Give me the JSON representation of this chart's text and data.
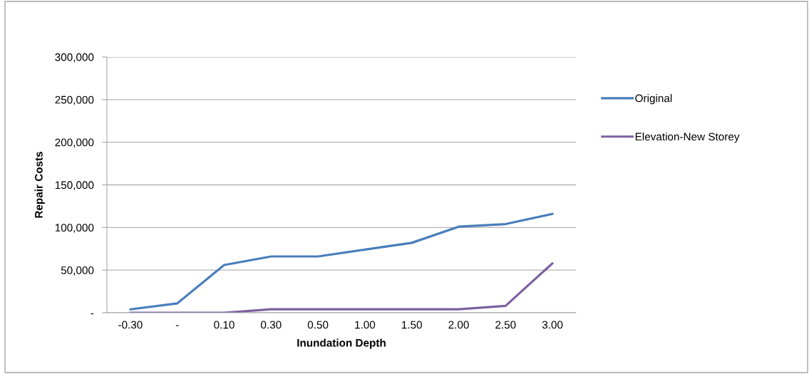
{
  "chart_data": {
    "type": "line",
    "xlabel": "Inundation Depth",
    "ylabel": "Repair Costs",
    "categories": [
      "-0.30",
      "-",
      "0.10",
      "0.30",
      "0.50",
      "1.00",
      "1.50",
      "2.00",
      "2.50",
      "3.00"
    ],
    "series": [
      {
        "name": "Original",
        "color": "#4a7ebb",
        "values": [
          4000,
          11000,
          56000,
          66000,
          66000,
          74000,
          82000,
          101000,
          104000,
          116000
        ]
      },
      {
        "name": "Elevation-New Storey",
        "color": "#7d60a0",
        "values": [
          0,
          0,
          0,
          4000,
          4000,
          4000,
          4000,
          4000,
          8000,
          58000
        ]
      }
    ],
    "ylim": [
      0,
      300000
    ],
    "yticks": [
      {
        "value": 0,
        "label": "-"
      },
      {
        "value": 50000,
        "label": "50,000"
      },
      {
        "value": 100000,
        "label": "100,000"
      },
      {
        "value": 150000,
        "label": "150,000"
      },
      {
        "value": 200000,
        "label": "200,000"
      },
      {
        "value": 250000,
        "label": "250,000"
      },
      {
        "value": 300000,
        "label": "300,000"
      }
    ],
    "grid": "y",
    "legend": "right",
    "marker": "none",
    "line_style": "solid"
  }
}
